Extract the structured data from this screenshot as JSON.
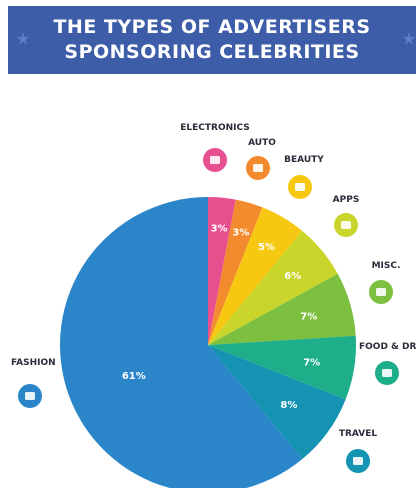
{
  "header": {
    "line1": "THE TYPES OF ADVERTISERS",
    "line2": "SPONSORING CELEBRITIES"
  },
  "chart_data": {
    "type": "pie",
    "title": "THE TYPES OF ADVERTISERS SPONSORING CELEBRITIES",
    "start_angle_deg": 0,
    "direction": "clockwise",
    "slices": [
      {
        "label": "ELECTRONICS",
        "value": 3,
        "value_label": "3%",
        "color": "#e84f8f",
        "icon": "monitor-icon"
      },
      {
        "label": "AUTO",
        "value": 3,
        "value_label": "3%",
        "color": "#f28b2e",
        "icon": "car-icon"
      },
      {
        "label": "BEAUTY",
        "value": 5,
        "value_label": "5%",
        "color": "#f6c812",
        "icon": "lipstick-icon"
      },
      {
        "label": "APPS",
        "value": 6,
        "value_label": "6%",
        "color": "#c9d52a",
        "icon": "phone-icon"
      },
      {
        "label": "MISC.",
        "value": 7,
        "value_label": "7%",
        "color": "#7dbf3f",
        "icon": "box-icon"
      },
      {
        "label": "FOOD & DRIN",
        "value": 7,
        "value_label": "7%",
        "color": "#1fae8a",
        "icon": "utensils-icon"
      },
      {
        "label": "TRAVEL",
        "value": 8,
        "value_label": "8%",
        "color": "#1593b3",
        "icon": "map-icon"
      },
      {
        "label": "FASHION",
        "value": 61,
        "value_label": "61%",
        "color": "#2a86c9",
        "icon": "dress-icon"
      }
    ]
  }
}
